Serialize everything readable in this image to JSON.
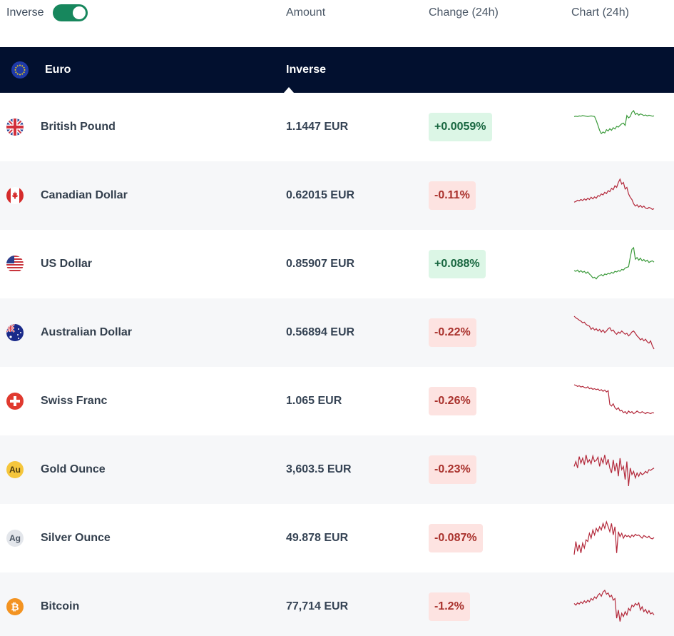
{
  "header": {
    "inverse_label": "Inverse",
    "inverse_on": true,
    "col_amount": "Amount",
    "col_change": "Change (24h)",
    "col_chart": "Chart (24h)"
  },
  "base": {
    "name": "Euro",
    "mode": "Inverse"
  },
  "colors": {
    "up_line": "#3a9a3a",
    "down_line": "#b3283a",
    "accent": "#17875d",
    "header_bg": "#02102f"
  },
  "rows": [
    {
      "name": "British Pound",
      "icon": "uk-flag-icon",
      "amount": "1.1447 EUR",
      "change": "+0.0059%",
      "direction": "up",
      "trend": [
        0.82,
        0.83,
        0.82,
        0.84,
        0.83,
        0.85,
        0.84,
        0.83,
        0.82,
        0.83,
        0.84,
        0.83,
        0.82,
        0.7,
        0.55,
        0.4,
        0.3,
        0.35,
        0.32,
        0.42,
        0.38,
        0.45,
        0.4,
        0.48,
        0.44,
        0.52,
        0.5,
        0.55,
        0.6,
        0.62,
        0.55,
        0.85,
        0.78,
        0.82,
        0.95,
        1.0,
        0.88,
        0.92,
        0.86,
        0.9,
        0.88,
        0.85,
        0.87,
        0.84,
        0.86,
        0.85,
        0.83,
        0.84
      ]
    },
    {
      "name": "Canadian Dollar",
      "icon": "canada-flag-icon",
      "amount": "0.62015 EUR",
      "change": "-0.11%",
      "direction": "down",
      "trend": [
        0.3,
        0.32,
        0.36,
        0.34,
        0.38,
        0.35,
        0.4,
        0.36,
        0.42,
        0.38,
        0.45,
        0.4,
        0.46,
        0.42,
        0.5,
        0.48,
        0.55,
        0.52,
        0.6,
        0.56,
        0.65,
        0.62,
        0.72,
        0.68,
        0.8,
        0.75,
        0.9,
        1.0,
        0.85,
        0.9,
        0.7,
        0.75,
        0.55,
        0.45,
        0.38,
        0.25,
        0.18,
        0.22,
        0.15,
        0.2,
        0.14,
        0.18,
        0.12,
        0.1,
        0.14,
        0.12,
        0.08,
        0.1
      ]
    },
    {
      "name": "US Dollar",
      "icon": "us-flag-icon",
      "amount": "0.85907 EUR",
      "change": "+0.088%",
      "direction": "up",
      "trend": [
        0.3,
        0.28,
        0.32,
        0.26,
        0.3,
        0.25,
        0.28,
        0.22,
        0.26,
        0.2,
        0.15,
        0.08,
        0.1,
        0.05,
        0.12,
        0.15,
        0.18,
        0.14,
        0.2,
        0.18,
        0.22,
        0.2,
        0.25,
        0.22,
        0.28,
        0.26,
        0.3,
        0.28,
        0.34,
        0.32,
        0.38,
        0.4,
        0.42,
        0.7,
        0.95,
        1.0,
        0.65,
        0.7,
        0.62,
        0.68,
        0.6,
        0.64,
        0.58,
        0.62,
        0.55,
        0.58,
        0.6,
        0.56
      ]
    },
    {
      "name": "Australian Dollar",
      "icon": "australia-flag-icon",
      "amount": "0.56894 EUR",
      "change": "-0.22%",
      "direction": "down",
      "trend": [
        1.0,
        0.95,
        0.92,
        0.88,
        0.85,
        0.8,
        0.82,
        0.75,
        0.72,
        0.7,
        0.6,
        0.65,
        0.58,
        0.62,
        0.55,
        0.6,
        0.52,
        0.58,
        0.5,
        0.55,
        0.62,
        0.65,
        0.55,
        0.58,
        0.5,
        0.45,
        0.52,
        0.48,
        0.55,
        0.5,
        0.45,
        0.48,
        0.4,
        0.45,
        0.52,
        0.55,
        0.48,
        0.4,
        0.35,
        0.28,
        0.32,
        0.25,
        0.3,
        0.22,
        0.18,
        0.25,
        0.1,
        0.0
      ]
    },
    {
      "name": "Swiss Franc",
      "icon": "swiss-flag-icon",
      "amount": "1.065 EUR",
      "change": "-0.26%",
      "direction": "down",
      "trend": [
        1.0,
        0.98,
        0.95,
        0.97,
        0.93,
        0.95,
        0.92,
        0.9,
        0.94,
        0.88,
        0.9,
        0.86,
        0.88,
        0.85,
        0.87,
        0.82,
        0.85,
        0.8,
        0.84,
        0.78,
        0.82,
        0.4,
        0.35,
        0.42,
        0.3,
        0.25,
        0.3,
        0.2,
        0.22,
        0.15,
        0.18,
        0.12,
        0.2,
        0.15,
        0.18,
        0.12,
        0.15,
        0.2,
        0.16,
        0.14,
        0.18,
        0.15,
        0.12,
        0.16,
        0.14,
        0.12,
        0.15,
        0.14
      ]
    },
    {
      "name": "Gold Ounce",
      "icon": "gold-au-icon",
      "amount": "3,603.5 EUR",
      "change": "-0.23%",
      "direction": "down",
      "trend": [
        0.6,
        0.75,
        0.55,
        0.9,
        0.7,
        0.85,
        0.65,
        0.95,
        0.72,
        0.8,
        0.68,
        0.92,
        0.75,
        0.78,
        0.88,
        0.6,
        0.85,
        0.7,
        0.95,
        0.65,
        0.82,
        0.55,
        0.4,
        0.8,
        0.45,
        0.7,
        0.3,
        0.85,
        0.5,
        0.6,
        0.2,
        0.75,
        0.0,
        0.55,
        0.35,
        0.45,
        0.25,
        0.4,
        0.3,
        0.42,
        0.35,
        0.38,
        0.45,
        0.4,
        0.5,
        0.48,
        0.52,
        0.55
      ]
    },
    {
      "name": "Silver Ounce",
      "icon": "silver-ag-icon",
      "amount": "49.878 EUR",
      "change": "-0.087%",
      "direction": "down",
      "trend": [
        0.0,
        0.4,
        0.1,
        0.3,
        0.05,
        0.35,
        0.2,
        0.45,
        0.4,
        0.65,
        0.5,
        0.75,
        0.6,
        0.8,
        0.7,
        0.85,
        0.75,
        0.95,
        0.8,
        1.0,
        0.85,
        0.7,
        0.95,
        0.6,
        0.85,
        0.05,
        0.7,
        0.55,
        0.65,
        0.5,
        0.6,
        0.55,
        0.58,
        0.52,
        0.6,
        0.55,
        0.62,
        0.58,
        0.6,
        0.55,
        0.5,
        0.58,
        0.55,
        0.52,
        0.56,
        0.5,
        0.48,
        0.52
      ]
    },
    {
      "name": "Bitcoin",
      "icon": "bitcoin-icon",
      "amount": "77,714 EUR",
      "change": "-1.2%",
      "direction": "down",
      "trend": [
        0.6,
        0.55,
        0.62,
        0.58,
        0.65,
        0.6,
        0.68,
        0.62,
        0.7,
        0.65,
        0.75,
        0.7,
        0.8,
        0.75,
        0.85,
        0.9,
        0.82,
        0.95,
        1.0,
        0.88,
        0.92,
        0.8,
        0.85,
        0.7,
        0.75,
        0.15,
        0.4,
        0.05,
        0.3,
        0.2,
        0.35,
        0.25,
        0.45,
        0.38,
        0.55,
        0.5,
        0.6,
        0.55,
        0.62,
        0.4,
        0.5,
        0.35,
        0.42,
        0.3,
        0.38,
        0.28,
        0.32,
        0.25
      ]
    }
  ]
}
